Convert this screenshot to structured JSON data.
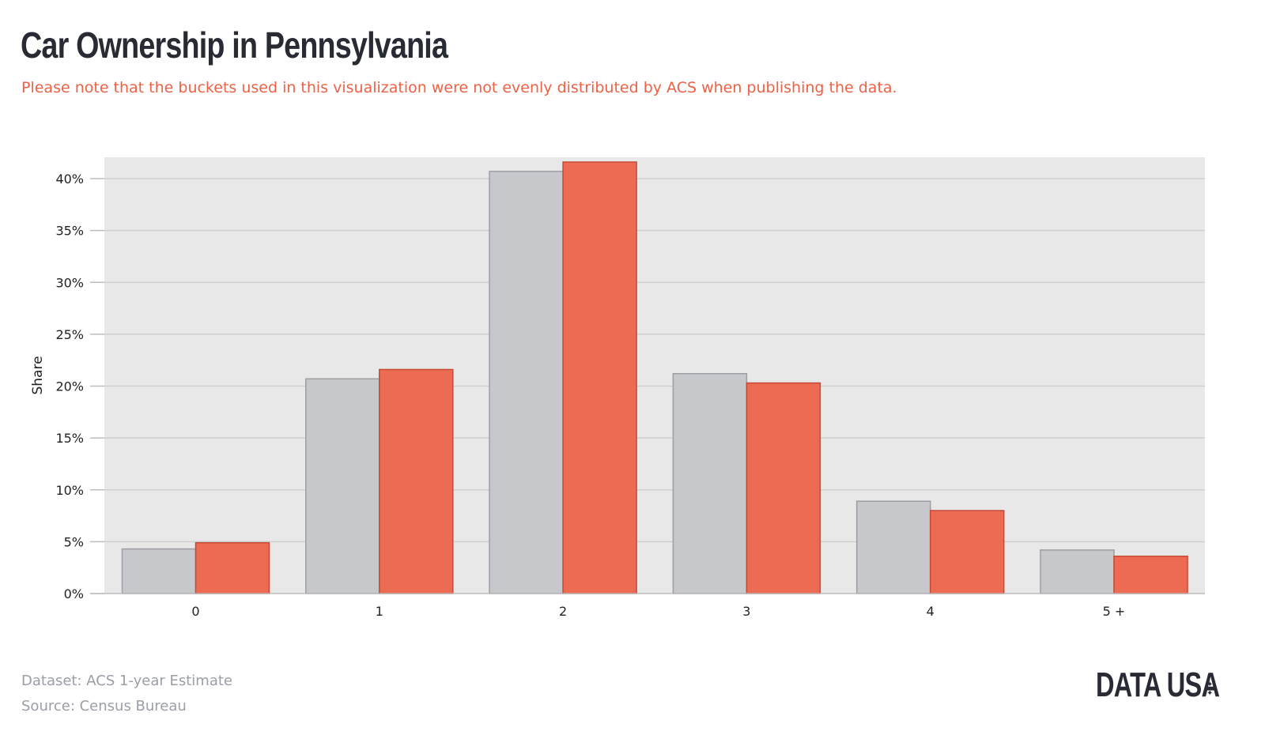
{
  "title": "Car Ownership in Pennsylvania",
  "subtitle": "Please note that the buckets used in this visualization were not evenly distributed by ACS when publishing the data.",
  "footer": {
    "dataset": "Dataset: ACS 1-year Estimate",
    "source": "Source: Census Bureau"
  },
  "logo": "DATA USA",
  "colors": {
    "series_a": "#c7c8cc",
    "series_a_stroke": "#9d9ea3",
    "series_b": "#ee6b53",
    "series_b_stroke": "#c44b36",
    "plot_background": "#e8e8e8",
    "gridline": "#cfcfcf"
  },
  "chart_data": {
    "type": "bar",
    "categories": [
      "0",
      "1",
      "2",
      "3",
      "4",
      "5 +"
    ],
    "series": [
      {
        "values": [
          4.3,
          20.7,
          40.7,
          21.2,
          8.9,
          4.2
        ]
      },
      {
        "values": [
          4.9,
          21.6,
          41.6,
          20.3,
          8.0,
          3.6
        ]
      }
    ],
    "ylabel": "Share",
    "xlabel": "",
    "ylim": [
      0,
      40
    ],
    "yticks": [
      "0%",
      "5%",
      "10%",
      "15%",
      "20%",
      "25%",
      "30%",
      "35%",
      "40%"
    ],
    "grid": true,
    "legend": "none"
  }
}
